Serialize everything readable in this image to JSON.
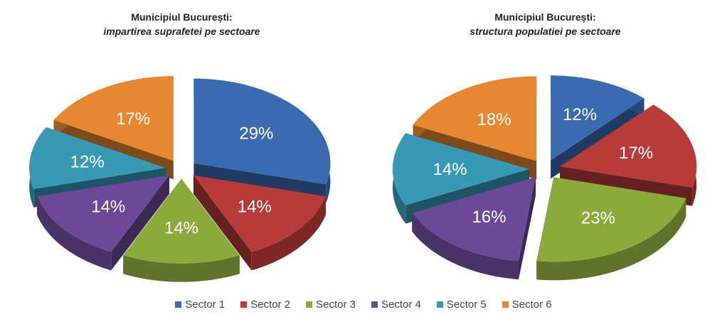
{
  "chart_data": [
    {
      "type": "pie",
      "title": "Municipiul București:",
      "subtitle": "impartirea suprafetei pe sectoare",
      "categories": [
        "Sector 1",
        "Sector 2",
        "Sector 3",
        "Sector 4",
        "Sector 5",
        "Sector 6"
      ],
      "values": [
        29,
        14,
        14,
        14,
        12,
        17
      ],
      "labels": [
        "29%",
        "14%",
        "14%",
        "14%",
        "12%",
        "17%"
      ]
    },
    {
      "type": "pie",
      "title": "Municipiul București:",
      "subtitle": "structura populatiei pe sectoare",
      "categories": [
        "Sector 1",
        "Sector 2",
        "Sector 3",
        "Sector 4",
        "Sector 5",
        "Sector 6"
      ],
      "values": [
        12,
        17,
        23,
        16,
        14,
        18
      ],
      "labels": [
        "12%",
        "17%",
        "23%",
        "16%",
        "14%",
        "18%"
      ]
    }
  ],
  "colors": [
    "#3a6bb0",
    "#b83b3a",
    "#8aaa3c",
    "#6a4a96",
    "#3799b4",
    "#e7872f"
  ],
  "legend": {
    "placement": "bottom",
    "items": [
      "Sector 1",
      "Sector 2",
      "Sector 3",
      "Sector 4",
      "Sector 5",
      "Sector 6"
    ]
  }
}
